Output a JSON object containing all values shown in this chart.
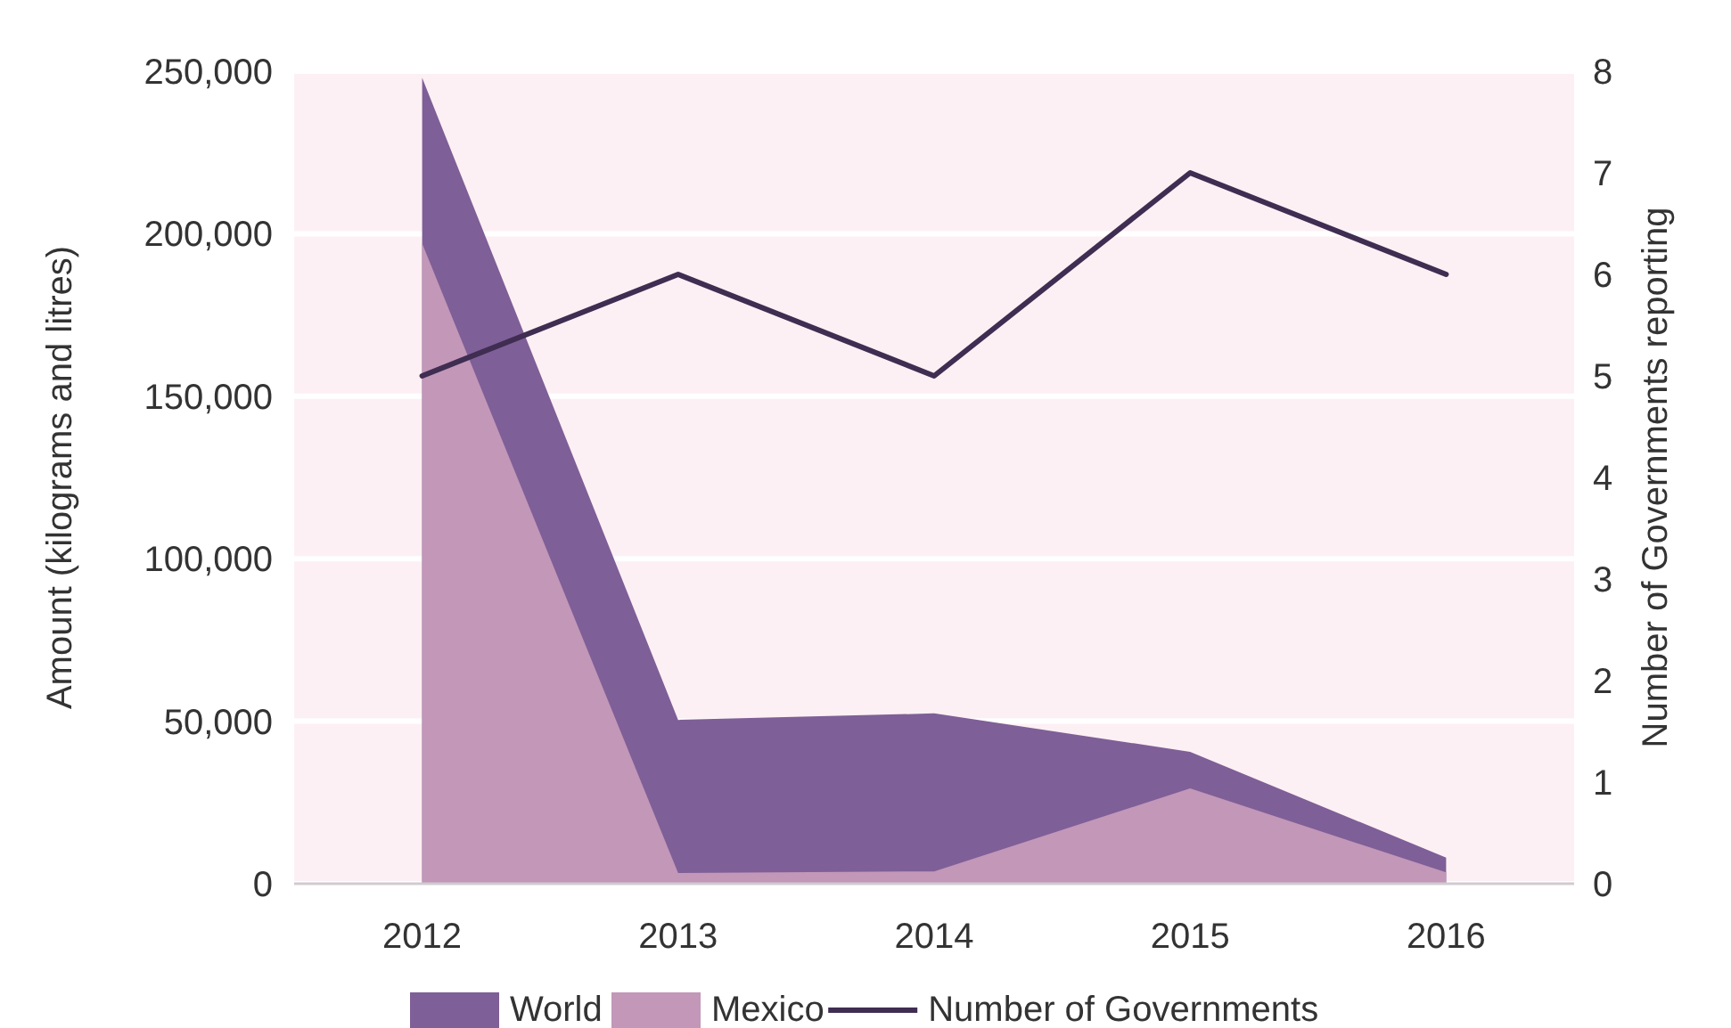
{
  "chart_data": {
    "type": "area",
    "categories": [
      "2012",
      "2013",
      "2014",
      "2015",
      "2016"
    ],
    "series": [
      {
        "name": "World",
        "color": "#7f5f97",
        "values": [
          248000,
          50400,
          52400,
          40600,
          8000
        ]
      },
      {
        "name": "Mexico",
        "color": "#c297b8",
        "values": [
          197000,
          3300,
          3800,
          29300,
          3500
        ]
      },
      {
        "name": "Number of Governments",
        "type": "line",
        "axis": "y2",
        "color": "#3f2d52",
        "values": [
          5,
          6,
          5,
          7,
          6
        ]
      }
    ],
    "ylabel": "Amount (kilograms and litres)",
    "y2label": "Number of Governments reporting",
    "ylim": [
      0,
      250000
    ],
    "yticks": [
      {
        "value": 0,
        "label": "0"
      },
      {
        "value": 50000,
        "label": "50,000"
      },
      {
        "value": 100000,
        "label": "100,000"
      },
      {
        "value": 150000,
        "label": "150,000"
      },
      {
        "value": 200000,
        "label": "200,000"
      },
      {
        "value": 250000,
        "label": "250,000"
      }
    ],
    "y2lim": [
      0,
      8
    ],
    "y2ticks": [
      0,
      1,
      2,
      3,
      4,
      5,
      6,
      7,
      8
    ],
    "grid": "y",
    "legend": "bottom"
  }
}
